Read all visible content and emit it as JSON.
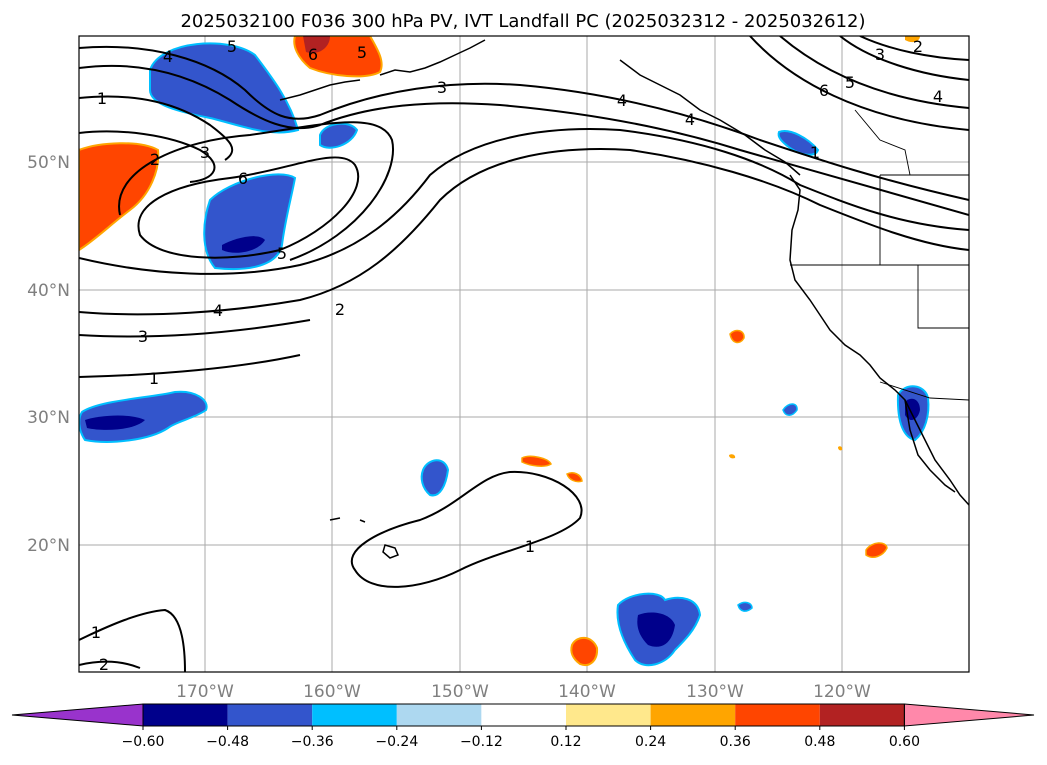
{
  "title": "2025032100 F036 300 hPa PV, IVT Landfall PC (2025032312 - 2025032612)",
  "map": {
    "lon_ticks": [
      "170°W",
      "160°W",
      "150°W",
      "140°W",
      "130°W",
      "120°W"
    ],
    "lat_ticks": [
      "50°N",
      "40°N",
      "30°N",
      "20°N"
    ],
    "contour_labels": [
      "4",
      "5",
      "1",
      "2",
      "3",
      "6",
      "5",
      "3",
      "4",
      "3",
      "4",
      "1",
      "2",
      "6",
      "5",
      "4",
      "6",
      "5",
      "4",
      "3",
      "2",
      "1",
      "1",
      "1",
      "2"
    ]
  },
  "colorbar": {
    "labels": [
      "−0.60",
      "−0.48",
      "−0.36",
      "−0.24",
      "−0.12",
      "0.12",
      "0.24",
      "0.36",
      "0.48",
      "0.60"
    ],
    "colors": [
      "#9933cc",
      "#00008b",
      "#3355cc",
      "#00bfff",
      "#add8f0",
      "#ffffff",
      "#ffe88c",
      "#ffa500",
      "#ff4500",
      "#b22222",
      "#ff88aa"
    ]
  }
}
